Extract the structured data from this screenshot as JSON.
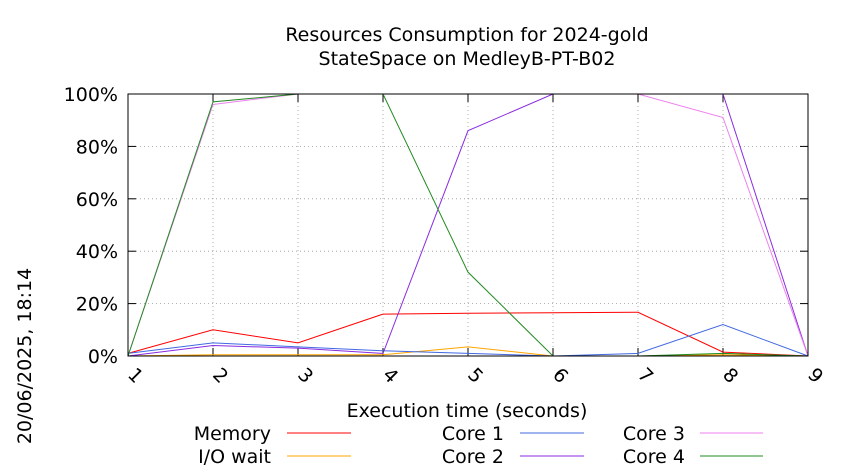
{
  "chart_data": {
    "type": "line",
    "title": "Resources Consumption for 2024-gold",
    "subtitle": "StateSpace on MedleyB-PT-B02",
    "xlabel": "Execution time (seconds)",
    "ylabel": "",
    "x": [
      1,
      2,
      3,
      4,
      5,
      6,
      7,
      8,
      9
    ],
    "x_ticks": [
      "1",
      "2",
      "3",
      "4",
      "5",
      "6",
      "7",
      "8",
      "9"
    ],
    "y_ticks": [
      "0%",
      "20%",
      "40%",
      "60%",
      "80%",
      "100%"
    ],
    "xlim": [
      1,
      9
    ],
    "ylim": [
      0,
      100
    ],
    "grid": true,
    "legend_position": "bottom",
    "side_text": "20/06/2025, 18:14",
    "series": [
      {
        "name": "Memory",
        "color": "#ff0000",
        "values": [
          1,
          10,
          5,
          16,
          16.3,
          16.5,
          16.7,
          1.5,
          0
        ]
      },
      {
        "name": "I/O wait",
        "color": "#ffa500",
        "values": [
          0,
          0.5,
          0.5,
          0.5,
          3.5,
          0,
          0,
          0.5,
          0
        ]
      },
      {
        "name": "Core 1",
        "color": "#4169e1",
        "values": [
          1,
          5,
          3.5,
          2,
          1,
          0,
          1,
          12,
          0
        ]
      },
      {
        "name": "Core 2",
        "color": "#8a2be2",
        "values": [
          0,
          4,
          3,
          1,
          86,
          100,
          100,
          100,
          0
        ]
      },
      {
        "name": "Core 3",
        "color": "#ee82ee",
        "values": [
          0,
          96,
          100,
          100,
          100,
          100,
          100,
          91,
          0
        ]
      },
      {
        "name": "Core 4",
        "color": "#228b22",
        "values": [
          0,
          97,
          100,
          100,
          32,
          0,
          0,
          1,
          0
        ]
      }
    ]
  }
}
